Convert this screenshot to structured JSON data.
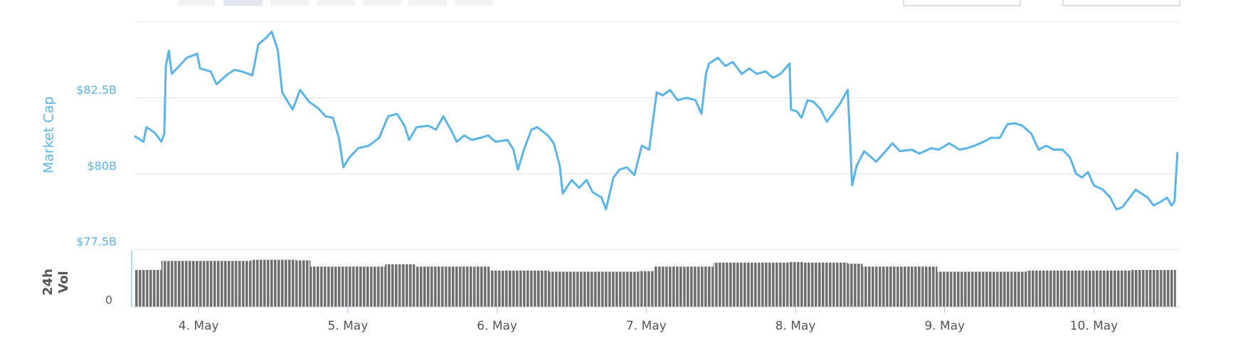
{
  "chart_data": [
    {
      "type": "line",
      "y_label": "Market Cap",
      "color": "#5ab4e6",
      "xlim": [
        3.57,
        10.57
      ],
      "ylim": [
        77.5,
        85
      ],
      "grid": true,
      "yticks": [
        {
          "value": 77.5,
          "label": "$77.5B"
        },
        {
          "value": 80,
          "label": "$80B"
        },
        {
          "value": 82.5,
          "label": "$82.5B"
        }
      ],
      "x": [
        3.57,
        3.63,
        3.65,
        3.7,
        3.72,
        3.75,
        3.77,
        3.78,
        3.8,
        3.82,
        3.87,
        3.92,
        3.99,
        4.01,
        4.08,
        4.12,
        4.19,
        4.24,
        4.29,
        4.36,
        4.4,
        4.45,
        4.49,
        4.53,
        4.56,
        4.63,
        4.68,
        4.74,
        4.8,
        4.85,
        4.9,
        4.94,
        4.97,
        5.01,
        5.07,
        5.14,
        5.21,
        5.27,
        5.33,
        5.38,
        5.41,
        5.46,
        5.54,
        5.59,
        5.64,
        5.69,
        5.73,
        5.78,
        5.83,
        5.89,
        5.94,
        5.99,
        6.07,
        6.11,
        6.14,
        6.18,
        6.23,
        6.27,
        6.34,
        6.38,
        6.42,
        6.44,
        6.5,
        6.55,
        6.6,
        6.64,
        6.7,
        6.73,
        6.78,
        6.82,
        6.87,
        6.92,
        6.97,
        7.02,
        7.04,
        7.07,
        7.11,
        7.16,
        7.21,
        7.27,
        7.33,
        7.37,
        7.4,
        7.42,
        7.48,
        7.53,
        7.58,
        7.64,
        7.69,
        7.74,
        7.8,
        7.85,
        7.9,
        7.96,
        7.97,
        8.01,
        8.04,
        8.08,
        8.12,
        8.17,
        8.21,
        8.25,
        8.3,
        8.34,
        8.35,
        8.38,
        8.41,
        8.46,
        8.51,
        8.54,
        8.59,
        8.65,
        8.7,
        8.78,
        8.83,
        8.91,
        8.96,
        9.03,
        9.1,
        9.15,
        9.2,
        9.26,
        9.31,
        9.37,
        9.42,
        9.47,
        9.52,
        9.58,
        9.63,
        9.68,
        9.73,
        9.79,
        9.84,
        9.88,
        9.92,
        9.96,
        10.0,
        10.06,
        10.11,
        10.15,
        10.19,
        10.24,
        10.28,
        10.32,
        10.36,
        10.4,
        10.45,
        10.49,
        10.52,
        10.54,
        10.56
      ],
      "values": [
        81.24,
        81.05,
        81.53,
        81.37,
        81.26,
        81.05,
        81.32,
        83.55,
        84.05,
        83.29,
        83.55,
        83.82,
        83.95,
        83.47,
        83.37,
        82.95,
        83.26,
        83.42,
        83.37,
        83.24,
        84.26,
        84.47,
        84.68,
        84.08,
        82.68,
        82.11,
        82.76,
        82.37,
        82.16,
        81.89,
        81.84,
        81.18,
        80.21,
        80.53,
        80.84,
        80.92,
        81.18,
        81.89,
        81.97,
        81.58,
        81.11,
        81.53,
        81.58,
        81.45,
        81.89,
        81.45,
        81.05,
        81.26,
        81.11,
        81.18,
        81.26,
        81.05,
        81.11,
        80.79,
        80.13,
        80.79,
        81.45,
        81.53,
        81.26,
        81.0,
        80.26,
        79.34,
        79.79,
        79.53,
        79.79,
        79.39,
        79.21,
        78.82,
        79.87,
        80.13,
        80.21,
        79.95,
        80.92,
        80.79,
        81.58,
        82.68,
        82.58,
        82.76,
        82.42,
        82.5,
        82.42,
        81.97,
        83.29,
        83.63,
        83.82,
        83.55,
        83.68,
        83.29,
        83.47,
        83.29,
        83.37,
        83.16,
        83.29,
        83.63,
        82.11,
        82.05,
        81.84,
        82.42,
        82.37,
        82.11,
        81.71,
        81.97,
        82.32,
        82.68,
        82.76,
        79.61,
        80.26,
        80.74,
        80.53,
        80.39,
        80.66,
        81.0,
        80.74,
        80.79,
        80.66,
        80.84,
        80.79,
        81.0,
        80.79,
        80.84,
        80.92,
        81.05,
        81.18,
        81.18,
        81.63,
        81.66,
        81.58,
        81.32,
        80.79,
        80.92,
        80.79,
        80.79,
        80.53,
        80.0,
        79.87,
        80.05,
        79.61,
        79.47,
        79.21,
        78.82,
        78.89,
        79.21,
        79.47,
        79.34,
        79.21,
        78.95,
        79.08,
        79.21,
        78.95,
        79.08,
        80.71
      ]
    },
    {
      "type": "bar",
      "y_label": "24h Vol",
      "color": "#6f6f6f",
      "xlim": [
        3.57,
        10.57
      ],
      "ylim": [
        0,
        100
      ],
      "yticks": [
        0
      ],
      "xticks": [
        {
          "value": 4,
          "label": "4. May"
        },
        {
          "value": 5,
          "label": "5. May"
        },
        {
          "value": 6,
          "label": "6. May"
        },
        {
          "value": 7,
          "label": "7. May"
        },
        {
          "value": 8,
          "label": "8. May"
        },
        {
          "value": 9,
          "label": "9. May"
        },
        {
          "value": 10,
          "label": "10. May"
        }
      ],
      "x": [
        3.6,
        3.7,
        3.8,
        3.9,
        4.0,
        4.1,
        4.2,
        4.3,
        4.4,
        4.5,
        4.6,
        4.7,
        4.8,
        4.9,
        5.0,
        5.1,
        5.2,
        5.3,
        5.4,
        5.5,
        5.6,
        5.7,
        5.8,
        5.9,
        6.0,
        6.1,
        6.2,
        6.3,
        6.4,
        6.5,
        6.6,
        6.7,
        6.8,
        6.9,
        7.0,
        7.1,
        7.2,
        7.3,
        7.4,
        7.5,
        7.6,
        7.7,
        7.8,
        7.9,
        8.0,
        8.1,
        8.2,
        8.3,
        8.4,
        8.5,
        8.6,
        8.7,
        8.8,
        8.9,
        9.0,
        9.1,
        9.2,
        9.3,
        9.4,
        9.5,
        9.6,
        9.7,
        9.8,
        9.9,
        10.0,
        10.1,
        10.2,
        10.3,
        10.4,
        10.5
      ],
      "values": [
        65,
        65,
        81,
        81,
        81,
        81,
        81,
        81,
        83,
        83,
        83,
        82,
        71,
        71,
        71,
        71,
        71,
        75,
        75,
        71,
        71,
        71,
        71,
        71,
        64,
        64,
        64,
        64,
        62,
        62,
        62,
        62,
        62,
        62,
        63,
        71,
        71,
        71,
        71,
        78,
        78,
        78,
        78,
        78,
        79,
        78,
        78,
        78,
        76,
        71,
        71,
        71,
        71,
        71,
        62,
        62,
        62,
        62,
        62,
        62,
        64,
        64,
        64,
        64,
        64,
        64,
        64,
        65,
        65,
        65
      ]
    }
  ]
}
